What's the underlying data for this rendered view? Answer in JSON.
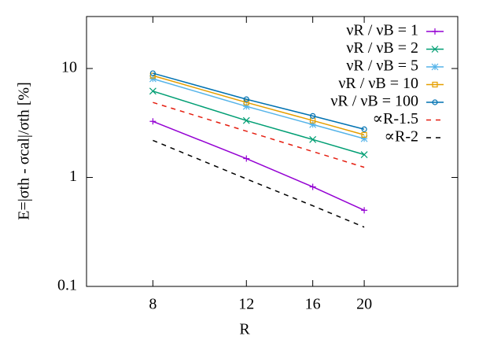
{
  "chart_data": {
    "type": "line",
    "x_label": "R",
    "y_label": "E=|σth - σcal|/σth [%]",
    "xscale": "log",
    "yscale": "log",
    "xlim": [
      6,
      30
    ],
    "ylim": [
      0.1,
      30
    ],
    "xticks": [
      8,
      12,
      16,
      20
    ],
    "yticks": [
      0.1,
      1,
      10
    ],
    "legend": "top-right",
    "x": [
      8,
      12,
      16,
      20
    ],
    "series": [
      {
        "name": "νR / νB = 1",
        "color": "#9400d3",
        "marker": "plus",
        "dash": false,
        "values": [
          3.27,
          1.49,
          0.82,
          0.5
        ]
      },
      {
        "name": "νR / νB = 2",
        "color": "#009e73",
        "marker": "cross",
        "dash": false,
        "values": [
          6.2,
          3.33,
          2.23,
          1.62
        ]
      },
      {
        "name": "νR / νB = 5",
        "color": "#56b4e9",
        "marker": "star",
        "dash": false,
        "values": [
          8.05,
          4.49,
          3.06,
          2.27
        ]
      },
      {
        "name": "νR / νB = 10",
        "color": "#e69f00",
        "marker": "square",
        "dash": false,
        "values": [
          8.6,
          4.88,
          3.33,
          2.46
        ]
      },
      {
        "name": "νR / νB = 100",
        "color": "#0072b2",
        "marker": "circle",
        "dash": false,
        "values": [
          9.05,
          5.22,
          3.67,
          2.77
        ]
      },
      {
        "name": "∝R-1.5",
        "color": "#e51e10",
        "marker": "none",
        "dash": true,
        "values": [
          4.88,
          2.66,
          1.73,
          1.24
        ]
      },
      {
        "name": "∝R-2",
        "color": "#000000",
        "marker": "none",
        "dash": true,
        "values": [
          2.19,
          0.97,
          0.55,
          0.35
        ]
      }
    ]
  }
}
